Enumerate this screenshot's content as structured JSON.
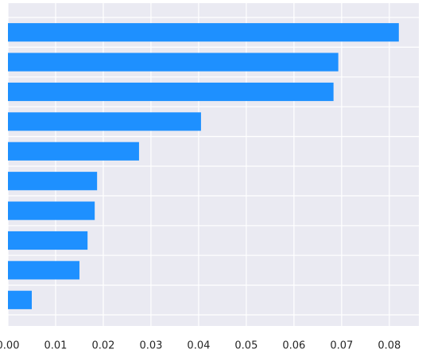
{
  "chart_data": {
    "type": "barh",
    "categories": [
      null,
      null,
      null,
      null,
      null,
      null,
      null,
      null,
      null,
      null
    ],
    "values": [
      0.082,
      0.0693,
      0.0683,
      0.0405,
      0.0275,
      0.0187,
      0.0182,
      0.0167,
      0.015,
      0.005
    ],
    "color": "#1e90ff",
    "xlim": [
      0,
      0.0862
    ],
    "xticks": [
      {
        "value": 0,
        "label": "0.00"
      },
      {
        "value": 0.01,
        "label": "0.01"
      },
      {
        "value": 0.02,
        "label": "0.02"
      },
      {
        "value": 0.03,
        "label": "0.03"
      },
      {
        "value": 0.04,
        "label": "0.04"
      },
      {
        "value": 0.05,
        "label": "0.05"
      },
      {
        "value": 0.06,
        "label": "0.06"
      },
      {
        "value": 0.07,
        "label": "0.07"
      },
      {
        "value": 0.08,
        "label": "0.08"
      }
    ],
    "grid": true
  }
}
